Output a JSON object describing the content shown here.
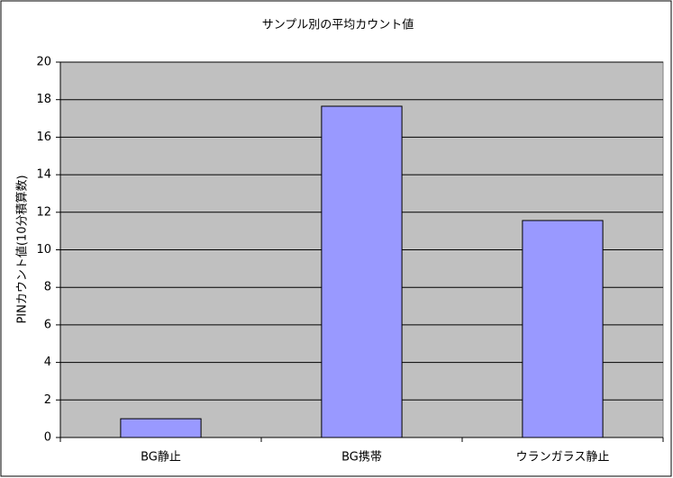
{
  "chart_data": {
    "type": "bar",
    "title": "サンプル別の平均カウント値",
    "y_label": "PINカウント値(10分積算数)",
    "categories": [
      "BG静止",
      "BG携帯",
      "ウランガラス静止"
    ],
    "values": [
      1.0,
      17.65,
      11.56
    ],
    "color": "#9999ff",
    "ylim": [
      0,
      20
    ],
    "yticks": [
      0,
      2,
      4,
      6,
      8,
      10,
      12,
      14,
      16,
      18,
      20
    ],
    "grid": true
  }
}
